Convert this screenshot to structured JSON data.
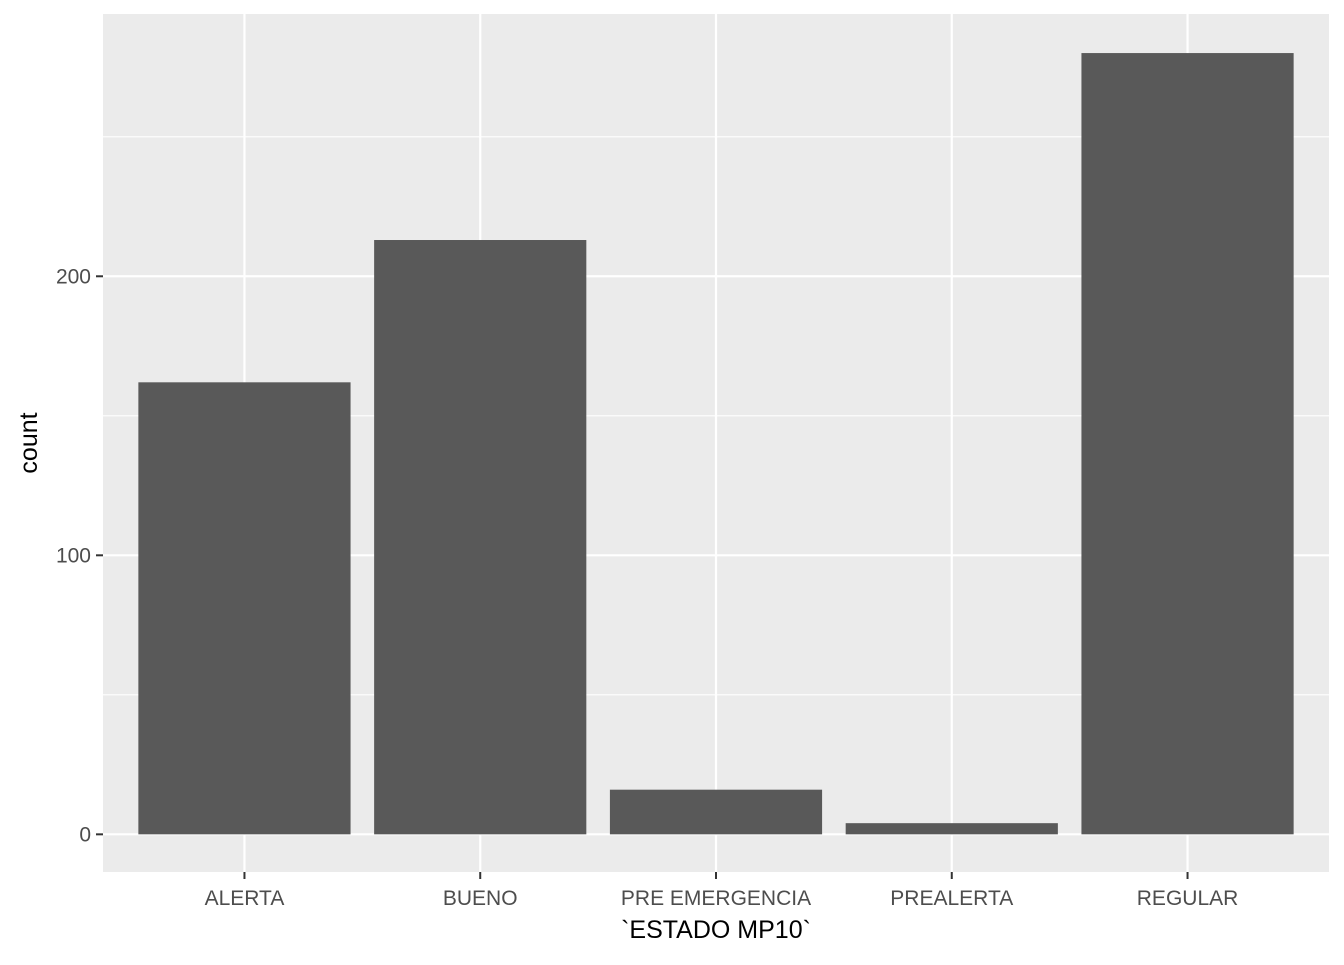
{
  "chart_data": {
    "type": "bar",
    "title": "",
    "xlabel": "`ESTADO MP10`",
    "ylabel": "count",
    "categories": [
      "ALERTA",
      "BUENO",
      "PRE EMERGENCIA",
      "PREALERTA",
      "REGULAR"
    ],
    "values": [
      162,
      213,
      16,
      4,
      280
    ],
    "ylim": [
      -13.5,
      294
    ],
    "yticks": [
      0,
      100,
      200
    ],
    "yticks_minor": [
      50,
      150,
      250
    ],
    "grid": true,
    "legend": "none",
    "colors": {
      "panel": "#ebebeb",
      "grid": "#ffffff",
      "bar": "#595959",
      "tick": "#333333"
    }
  }
}
